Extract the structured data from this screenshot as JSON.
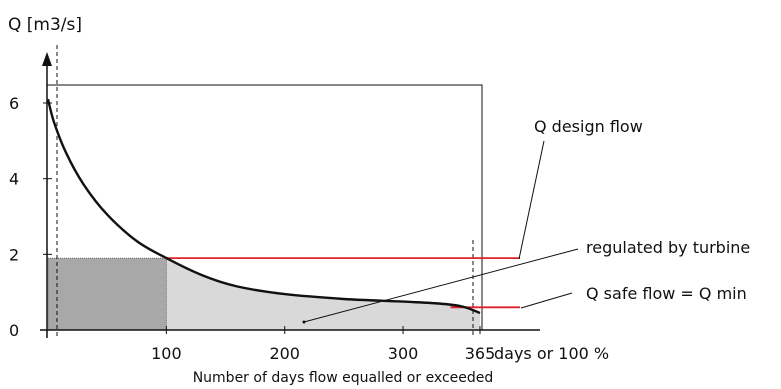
{
  "chart_data": {
    "type": "line",
    "ylabel": "Q [m3/s]",
    "xlabel": "Number of days flow equalled or exceeded",
    "x_unit_label": "days or 100 %",
    "xlim": [
      0,
      365
    ],
    "ylim": [
      0,
      7
    ],
    "x_ticks": [
      "100",
      "200",
      "300",
      "365"
    ],
    "y_ticks": [
      "0",
      "2",
      "4",
      "6"
    ],
    "grid": false,
    "curve": {
      "description": "flow duration curve",
      "x": [
        0,
        5,
        15,
        30,
        50,
        75,
        100,
        130,
        160,
        200,
        250,
        300,
        330,
        350,
        365
      ],
      "y": [
        6.1,
        5.5,
        4.7,
        3.85,
        3.05,
        2.35,
        1.9,
        1.45,
        1.15,
        0.95,
        0.82,
        0.75,
        0.7,
        0.62,
        0.45
      ]
    },
    "design_flow": {
      "value": 1.9,
      "x_from": 100,
      "x_to": 365
    },
    "safe_flow": {
      "value": 0.6,
      "x_from": 340,
      "x_to": 365
    },
    "annotations": {
      "design_flow": "Q design flow",
      "regulated": "regulated by turbine",
      "safe_flow": "Q safe flow = Q min"
    },
    "colors": {
      "curve": "#111111",
      "design_line": "#e0202a",
      "dark_fill": "#a8a8a8",
      "light_fill": "#d9d9d9",
      "axis": "#111111"
    }
  }
}
